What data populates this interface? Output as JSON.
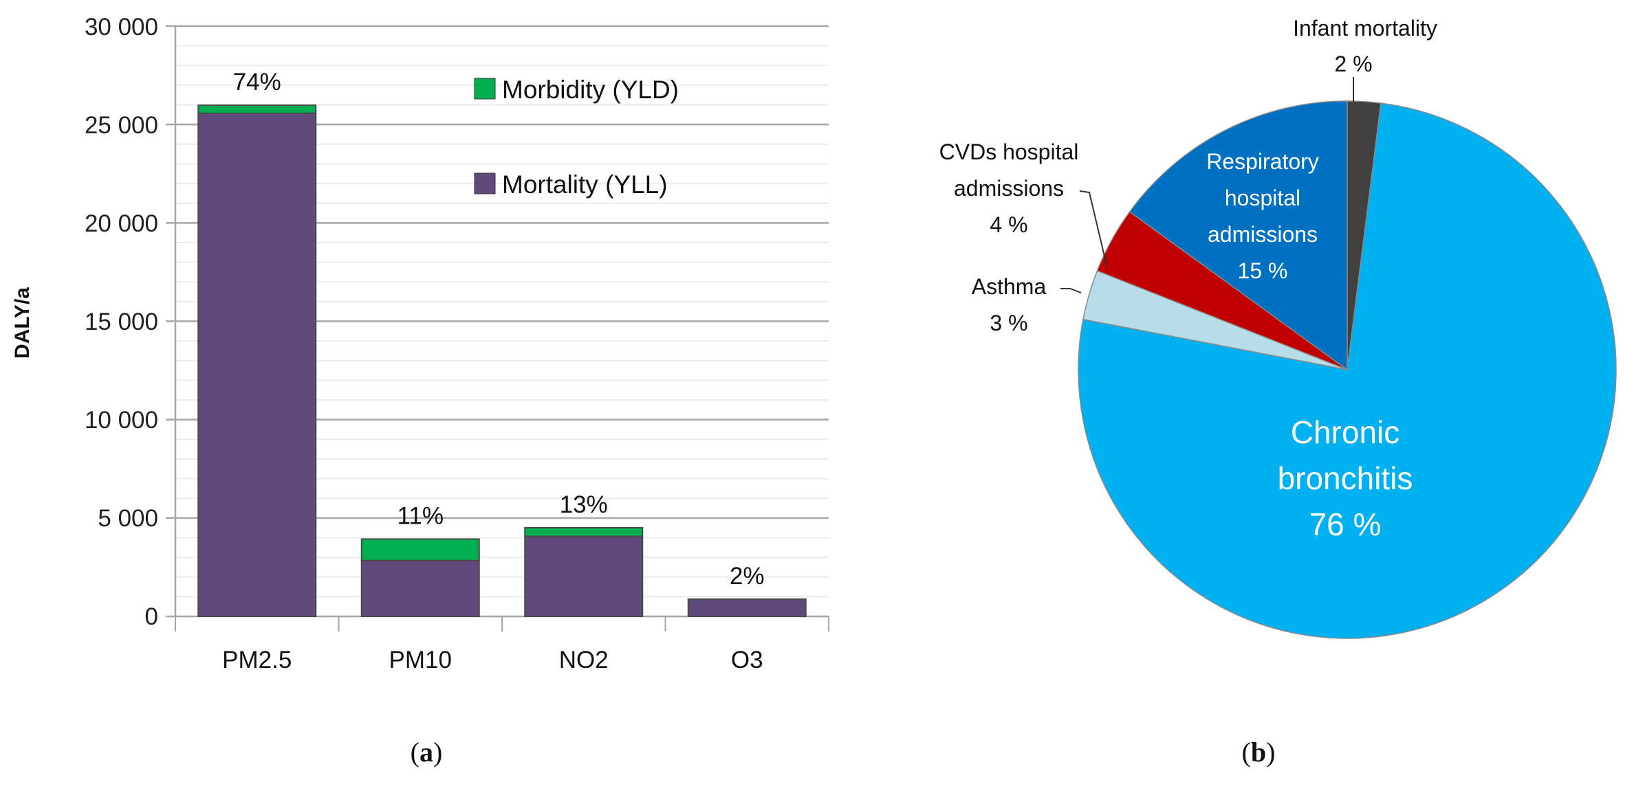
{
  "chart_data": [
    {
      "type": "bar",
      "stacked": true,
      "panel_label": "(a)",
      "panel_letter": "a",
      "ylabel": "DALY/a",
      "xlabel": "",
      "ylim": [
        0,
        30000
      ],
      "yticks": [
        0,
        5000,
        10000,
        15000,
        20000,
        25000,
        30000
      ],
      "ytick_labels": [
        "0",
        "5 000",
        "10 000",
        "15 000",
        "20 000",
        "25 000",
        "30 000"
      ],
      "minor_grid_step": 1000,
      "grid": true,
      "categories": [
        "PM2.5",
        "PM10",
        "NO2",
        "O3"
      ],
      "series": [
        {
          "name": "Mortality (YLL)",
          "color": "#604a7b",
          "values": [
            25570,
            2840,
            4070,
            870
          ]
        },
        {
          "name": "Morbidity (YLD)",
          "color": "#00b050",
          "values": [
            410,
            1090,
            440,
            10
          ]
        }
      ],
      "data_labels": [
        "74%",
        "11%",
        "13%",
        "2%"
      ],
      "legend": {
        "placement": "top-right",
        "entries": [
          "Morbidity (YLD)",
          "Mortality (YLL)"
        ]
      }
    },
    {
      "type": "pie",
      "panel_label": "(b)",
      "panel_letter": "b",
      "start": "top",
      "direction": "clockwise",
      "slices": [
        {
          "label": "Infant mortality",
          "value": 2,
          "pct_label": "2 %",
          "color": "#404040"
        },
        {
          "label": "Chronic bronchitis",
          "label_lines": [
            "Chronic",
            "bronchitis"
          ],
          "value": 76,
          "pct_label": "76 %",
          "color": "#00b0f0"
        },
        {
          "label": "Asthma",
          "value": 3,
          "pct_label": "3 %",
          "color": "#b7dde8"
        },
        {
          "label": "CVDs hospital admissions",
          "label_lines": [
            "CVDs hospital",
            "admissions"
          ],
          "value": 4,
          "pct_label": "4 %",
          "color": "#c00000"
        },
        {
          "label": "Respiratory hospital admissions",
          "label_lines": [
            "Respiratory",
            "hospital",
            "admissions"
          ],
          "value": 15,
          "pct_label": "15 %",
          "color": "#0070c0"
        }
      ]
    }
  ]
}
